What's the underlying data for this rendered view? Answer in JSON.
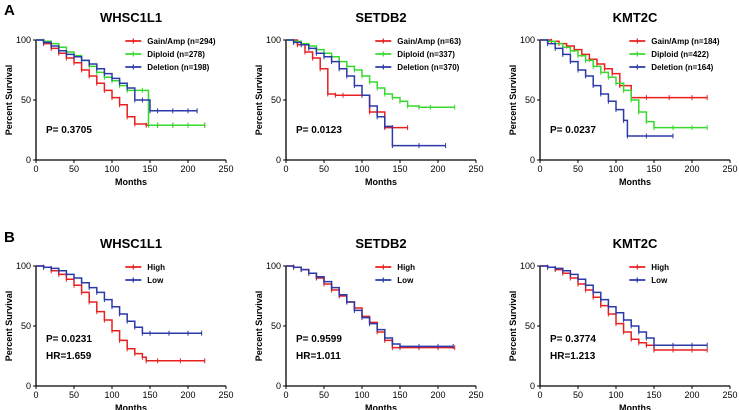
{
  "panel_labels": [
    "A",
    "B"
  ],
  "chart_data": [
    {
      "type": "line",
      "subtype": "kaplan-meier",
      "panel": "A",
      "title": "WHSC1L1",
      "xlabel": "Months",
      "ylabel": "Percent Survival",
      "xlim": [
        0,
        250
      ],
      "ylim": [
        0,
        100
      ],
      "xticks": [
        "0",
        "50",
        "100",
        "150",
        "200",
        "250"
      ],
      "yticks": [
        "0",
        "50",
        "100"
      ],
      "stats": [
        "P= 0.3705"
      ],
      "series": [
        {
          "name": "Gain/Amp (n=294)",
          "color": "#e8201f",
          "x": [
            0,
            10,
            20,
            30,
            40,
            50,
            60,
            70,
            80,
            90,
            100,
            110,
            120,
            130,
            145,
            160,
            180,
            200,
            222
          ],
          "y": [
            100,
            97,
            93,
            89,
            85,
            81,
            75,
            70,
            64,
            58,
            52,
            46,
            36,
            30,
            29,
            29,
            29,
            29,
            29
          ]
        },
        {
          "name": "Diploid (n=278)",
          "color": "#37d92f",
          "x": [
            0,
            10,
            20,
            30,
            40,
            50,
            60,
            70,
            80,
            90,
            100,
            110,
            120,
            130,
            140,
            148,
            160,
            180,
            200,
            222
          ],
          "y": [
            100,
            99,
            97,
            94,
            90,
            87,
            83,
            78,
            73,
            69,
            66,
            62,
            58,
            58,
            58,
            29,
            29,
            29,
            29,
            29
          ]
        },
        {
          "name": "Deletion (n=198)",
          "color": "#2b3aa8",
          "x": [
            0,
            10,
            20,
            30,
            40,
            50,
            60,
            70,
            80,
            90,
            100,
            110,
            120,
            130,
            140,
            150,
            160,
            180,
            200,
            212
          ],
          "y": [
            100,
            98,
            95,
            91,
            88,
            86,
            83,
            80,
            76,
            72,
            68,
            64,
            60,
            50,
            50,
            41,
            41,
            41,
            41,
            41
          ]
        }
      ]
    },
    {
      "type": "line",
      "subtype": "kaplan-meier",
      "panel": "A",
      "title": "SETDB2",
      "xlabel": "Months",
      "ylabel": "Percent Survival",
      "xlim": [
        0,
        250
      ],
      "ylim": [
        0,
        100
      ],
      "xticks": [
        "0",
        "50",
        "100",
        "150",
        "200",
        "250"
      ],
      "yticks": [
        "0",
        "50",
        "100"
      ],
      "stats": [
        "P= 0.0123"
      ],
      "series": [
        {
          "name": "Gain/Amp (n=63)",
          "color": "#e8201f",
          "x": [
            0,
            15,
            25,
            35,
            45,
            55,
            65,
            75,
            100,
            110,
            120,
            130,
            140,
            160
          ],
          "y": [
            100,
            96,
            90,
            85,
            76,
            55,
            54,
            54,
            54,
            40,
            40,
            27,
            27,
            27
          ]
        },
        {
          "name": "Diploid (n=337)",
          "color": "#37d92f",
          "x": [
            0,
            10,
            20,
            30,
            40,
            50,
            60,
            70,
            80,
            90,
            100,
            110,
            120,
            130,
            140,
            150,
            160,
            175,
            190,
            222
          ],
          "y": [
            100,
            99,
            97,
            95,
            92,
            89,
            86,
            82,
            78,
            75,
            70,
            65,
            60,
            55,
            52,
            49,
            45,
            44,
            44,
            44
          ]
        },
        {
          "name": "Deletion (n=370)",
          "color": "#2b3aa8",
          "x": [
            0,
            10,
            20,
            30,
            40,
            50,
            60,
            70,
            80,
            90,
            100,
            110,
            120,
            130,
            140,
            175,
            210
          ],
          "y": [
            100,
            98,
            96,
            93,
            89,
            86,
            82,
            76,
            70,
            62,
            54,
            45,
            36,
            28,
            12,
            12,
            12
          ]
        }
      ]
    },
    {
      "type": "line",
      "subtype": "kaplan-meier",
      "panel": "A",
      "title": "KMT2C",
      "xlabel": "Months",
      "ylabel": "Percent Survival",
      "xlim": [
        0,
        250
      ],
      "ylim": [
        0,
        100
      ],
      "xticks": [
        "0",
        "50",
        "100",
        "150",
        "200",
        "250"
      ],
      "yticks": [
        "0",
        "50",
        "100"
      ],
      "stats": [
        "P= 0.0237"
      ],
      "series": [
        {
          "name": "Gain/Amp (n=184)",
          "color": "#e8201f",
          "x": [
            0,
            15,
            25,
            35,
            45,
            55,
            65,
            75,
            85,
            95,
            105,
            120,
            140,
            170,
            200,
            220
          ],
          "y": [
            100,
            99,
            97,
            95,
            92,
            88,
            84,
            80,
            76,
            72,
            62,
            52,
            52,
            52,
            52,
            52
          ]
        },
        {
          "name": "Diploid (n=422)",
          "color": "#37d92f",
          "x": [
            0,
            10,
            20,
            30,
            40,
            50,
            60,
            70,
            80,
            90,
            100,
            110,
            120,
            130,
            140,
            150,
            175,
            200,
            220
          ],
          "y": [
            100,
            99,
            97,
            94,
            91,
            87,
            83,
            78,
            73,
            69,
            64,
            58,
            50,
            40,
            32,
            27,
            27,
            27,
            27
          ]
        },
        {
          "name": "Deletion (n=164)",
          "color": "#2b3aa8",
          "x": [
            0,
            10,
            20,
            30,
            40,
            50,
            60,
            70,
            80,
            90,
            100,
            110,
            115,
            140,
            175
          ],
          "y": [
            100,
            97,
            93,
            88,
            82,
            75,
            70,
            62,
            55,
            49,
            42,
            33,
            20,
            20,
            20
          ]
        }
      ]
    },
    {
      "type": "line",
      "subtype": "kaplan-meier",
      "panel": "B",
      "title": "WHSC1L1",
      "xlabel": "Months",
      "ylabel": "Percent Survival",
      "xlim": [
        0,
        250
      ],
      "ylim": [
        0,
        100
      ],
      "xticks": [
        "0",
        "50",
        "100",
        "150",
        "200",
        "250"
      ],
      "yticks": [
        "0",
        "50",
        "100"
      ],
      "stats": [
        "P= 0.0231",
        "HR=1.659"
      ],
      "series": [
        {
          "name": "High",
          "color": "#e8201f",
          "x": [
            0,
            10,
            20,
            30,
            40,
            50,
            60,
            70,
            80,
            90,
            100,
            110,
            120,
            130,
            140,
            145,
            160,
            190,
            222
          ],
          "y": [
            100,
            99,
            96,
            93,
            89,
            84,
            78,
            70,
            62,
            55,
            46,
            38,
            31,
            27,
            24,
            21,
            21,
            21,
            21
          ]
        },
        {
          "name": "Low",
          "color": "#2b3aa8",
          "x": [
            0,
            10,
            20,
            30,
            40,
            50,
            60,
            70,
            80,
            90,
            100,
            110,
            120,
            130,
            140,
            150,
            175,
            200,
            218
          ],
          "y": [
            100,
            99,
            98,
            96,
            93,
            90,
            86,
            82,
            78,
            72,
            66,
            60,
            54,
            49,
            44,
            44,
            44,
            44,
            44
          ]
        }
      ]
    },
    {
      "type": "line",
      "subtype": "kaplan-meier",
      "panel": "B",
      "title": "SETDB2",
      "xlabel": "Months",
      "ylabel": "Percent Survival",
      "xlim": [
        0,
        250
      ],
      "ylim": [
        0,
        100
      ],
      "xticks": [
        "0",
        "50",
        "100",
        "150",
        "200",
        "250"
      ],
      "yticks": [
        "0",
        "50",
        "100"
      ],
      "stats": [
        "P= 0.9599",
        "HR=1.011"
      ],
      "series": [
        {
          "name": "High",
          "color": "#e8201f",
          "x": [
            0,
            10,
            20,
            30,
            40,
            50,
            60,
            70,
            80,
            90,
            100,
            110,
            120,
            130,
            140,
            150,
            175,
            200,
            222
          ],
          "y": [
            100,
            99,
            97,
            94,
            90,
            85,
            80,
            75,
            70,
            65,
            58,
            53,
            45,
            38,
            32,
            32,
            32,
            32,
            32
          ]
        },
        {
          "name": "Low",
          "color": "#2b3aa8",
          "x": [
            0,
            10,
            20,
            30,
            40,
            50,
            60,
            70,
            80,
            90,
            100,
            110,
            120,
            130,
            140,
            150,
            175,
            200,
            220
          ],
          "y": [
            100,
            99,
            97,
            94,
            91,
            87,
            82,
            76,
            70,
            63,
            57,
            52,
            47,
            40,
            35,
            33,
            33,
            33,
            33
          ]
        }
      ]
    },
    {
      "type": "line",
      "subtype": "kaplan-meier",
      "panel": "B",
      "title": "KMT2C",
      "xlabel": "Months",
      "ylabel": "Percent Survival",
      "xlim": [
        0,
        250
      ],
      "ylim": [
        0,
        100
      ],
      "xticks": [
        "0",
        "50",
        "100",
        "150",
        "200",
        "250"
      ],
      "yticks": [
        "0",
        "50",
        "100"
      ],
      "stats": [
        "P= 0.3774",
        "HR=1.213"
      ],
      "series": [
        {
          "name": "High",
          "color": "#e8201f",
          "x": [
            0,
            10,
            20,
            30,
            40,
            50,
            60,
            70,
            80,
            90,
            100,
            110,
            120,
            130,
            140,
            150,
            175,
            200,
            220
          ],
          "y": [
            100,
            99,
            97,
            94,
            90,
            85,
            80,
            74,
            67,
            60,
            52,
            45,
            39,
            36,
            34,
            30,
            30,
            30,
            30
          ]
        },
        {
          "name": "Low",
          "color": "#2b3aa8",
          "x": [
            0,
            10,
            20,
            30,
            40,
            50,
            60,
            70,
            80,
            90,
            100,
            110,
            120,
            130,
            140,
            150,
            175,
            200,
            220
          ],
          "y": [
            100,
            99,
            98,
            96,
            93,
            89,
            84,
            78,
            72,
            66,
            61,
            55,
            50,
            45,
            40,
            34,
            34,
            34,
            34
          ]
        }
      ]
    }
  ]
}
